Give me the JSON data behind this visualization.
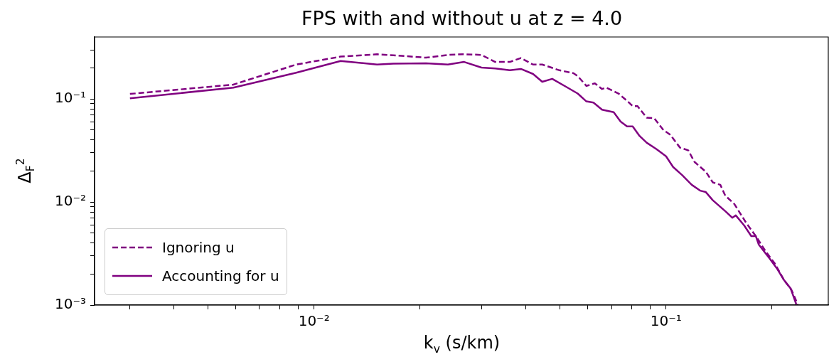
{
  "chart_data": {
    "type": "line",
    "title": "FPS with and without u at z = 4.0",
    "xlabel": "k$_{v}$ (s/km)",
    "ylabel": "Δ$_{F}$$^{2}$",
    "log": "xy",
    "xlim": [
      0.00238,
      0.289
    ],
    "ylim": [
      0.001,
      0.4
    ],
    "xticks": [
      {
        "value": 0.003,
        "label": null
      },
      {
        "value": 0.004,
        "label": null
      },
      {
        "value": 0.005,
        "label": null
      },
      {
        "value": 0.006,
        "label": null
      },
      {
        "value": 0.007,
        "label": null
      },
      {
        "value": 0.008,
        "label": null
      },
      {
        "value": 0.009,
        "label": null
      },
      {
        "value": 0.01,
        "label": "10⁻²"
      },
      {
        "value": 0.02,
        "label": null
      },
      {
        "value": 0.03,
        "label": null
      },
      {
        "value": 0.04,
        "label": null
      },
      {
        "value": 0.05,
        "label": null
      },
      {
        "value": 0.06,
        "label": null
      },
      {
        "value": 0.07,
        "label": null
      },
      {
        "value": 0.08,
        "label": null
      },
      {
        "value": 0.09,
        "label": null
      },
      {
        "value": 0.1,
        "label": "10⁻¹"
      },
      {
        "value": 0.2,
        "label": null
      }
    ],
    "yticks": [
      {
        "value": 0.001,
        "label": "10⁻³"
      },
      {
        "value": 0.002,
        "label": null
      },
      {
        "value": 0.003,
        "label": null
      },
      {
        "value": 0.004,
        "label": null
      },
      {
        "value": 0.005,
        "label": null
      },
      {
        "value": 0.006,
        "label": null
      },
      {
        "value": 0.007,
        "label": null
      },
      {
        "value": 0.008,
        "label": null
      },
      {
        "value": 0.009,
        "label": null
      },
      {
        "value": 0.01,
        "label": "10⁻²"
      },
      {
        "value": 0.02,
        "label": null
      },
      {
        "value": 0.03,
        "label": null
      },
      {
        "value": 0.04,
        "label": null
      },
      {
        "value": 0.05,
        "label": null
      },
      {
        "value": 0.06,
        "label": null
      },
      {
        "value": 0.07,
        "label": null
      },
      {
        "value": 0.08,
        "label": null
      },
      {
        "value": 0.09,
        "label": null
      },
      {
        "value": 0.1,
        "label": "10⁻¹"
      },
      {
        "value": 0.2,
        "label": null
      },
      {
        "value": 0.3,
        "label": null
      }
    ],
    "legend": "bottom left",
    "marker": "none",
    "series": [
      {
        "name": "Ignoring u",
        "color": "#800080",
        "line_style": "dashed",
        "x": [
          0.003,
          0.0059,
          0.0089,
          0.0119,
          0.0151,
          0.0168,
          0.0208,
          0.024,
          0.0267,
          0.0299,
          0.0327,
          0.036,
          0.0387,
          0.0419,
          0.0445,
          0.0498,
          0.0546,
          0.0561,
          0.0594,
          0.0628,
          0.0658,
          0.0676,
          0.0733,
          0.0778,
          0.0804,
          0.083,
          0.0881,
          0.0925,
          0.0983,
          0.1028,
          0.1096,
          0.1156,
          0.1205,
          0.1297,
          0.1358,
          0.1426,
          0.1473,
          0.1563,
          0.169,
          0.1799,
          0.1919,
          0.2037,
          0.2163,
          0.227,
          0.2366
        ],
        "values": [
          0.112,
          0.138,
          0.216,
          0.258,
          0.272,
          0.266,
          0.252,
          0.268,
          0.272,
          0.268,
          0.229,
          0.229,
          0.25,
          0.216,
          0.216,
          0.19,
          0.178,
          0.167,
          0.134,
          0.142,
          0.125,
          0.129,
          0.113,
          0.0948,
          0.0852,
          0.0852,
          0.0659,
          0.0653,
          0.05,
          0.045,
          0.0337,
          0.0318,
          0.0245,
          0.0197,
          0.0155,
          0.0147,
          0.01155,
          0.00958,
          0.00626,
          0.00467,
          0.00332,
          0.00253,
          0.00175,
          0.00141,
          0.00102
        ]
      },
      {
        "name": "Accounting for u",
        "color": "#800080",
        "line_style": "solid",
        "x": [
          0.003,
          0.0059,
          0.0089,
          0.0119,
          0.0151,
          0.0168,
          0.0208,
          0.024,
          0.0267,
          0.0299,
          0.0327,
          0.036,
          0.0387,
          0.0419,
          0.0445,
          0.0475,
          0.0521,
          0.0561,
          0.0594,
          0.0622,
          0.0658,
          0.071,
          0.0743,
          0.0775,
          0.0804,
          0.0841,
          0.0881,
          0.0938,
          0.1,
          0.1047,
          0.1112,
          0.1183,
          0.125,
          0.1297,
          0.1358,
          0.1473,
          0.1542,
          0.1578,
          0.1667,
          0.1746,
          0.1799,
          0.1833,
          0.1972,
          0.2065,
          0.2163,
          0.2259,
          0.2344
        ],
        "values": [
          0.1016,
          0.129,
          0.18,
          0.234,
          0.216,
          0.22,
          0.222,
          0.216,
          0.229,
          0.202,
          0.198,
          0.19,
          0.196,
          0.175,
          0.147,
          0.157,
          0.131,
          0.113,
          0.0948,
          0.0923,
          0.0787,
          0.0746,
          0.0603,
          0.0542,
          0.0542,
          0.0438,
          0.0377,
          0.0327,
          0.0278,
          0.0219,
          0.0182,
          0.0147,
          0.0129,
          0.0125,
          0.0104,
          0.00816,
          0.00704,
          0.00742,
          0.00593,
          0.00467,
          0.00467,
          0.00388,
          0.00281,
          0.00227,
          0.00175,
          0.00145,
          0.00102
        ]
      }
    ]
  }
}
